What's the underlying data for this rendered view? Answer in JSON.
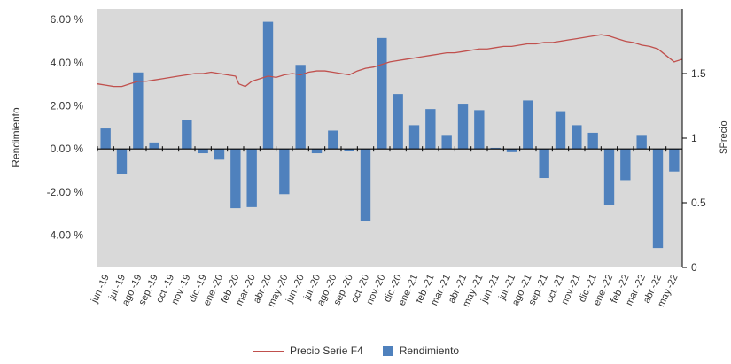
{
  "chart_data": {
    "type": "bar",
    "xlabel": "",
    "ylabel": "Rendimiento",
    "y2label": "$Precio",
    "categories": [
      "jun.-19",
      "jul.-19",
      "ago.-19",
      "sep.-19",
      "oct.-19",
      "nov.-19",
      "dic.-19",
      "ene.-20",
      "feb.-20",
      "mar.-20",
      "abr.-20",
      "may.-20",
      "jun.-20",
      "jul.-20",
      "ago.-20",
      "sep.-20",
      "oct.-20",
      "nov.-20",
      "dic.-20",
      "ene.-21",
      "feb.-21",
      "mar.-21",
      "abr.-21",
      "may.-21",
      "jun.-21",
      "jul.-21",
      "ago.-21",
      "sep.-21",
      "oct.-21",
      "nov.-21",
      "dic.-21",
      "ene.-22",
      "feb.-22",
      "mar.-22",
      "abr.-22",
      "may.-22"
    ],
    "x_tick_labels": [
      "jun.-19",
      "jul.-19",
      "ago.-19",
      "sep.-19",
      "oct.-19",
      "nov.-19",
      "dic.-19",
      "ene.-20",
      "feb.-20",
      "mar.-20",
      "abr.-20",
      "may.-20",
      "jun.-20",
      "jul.-20",
      "ago.-20",
      "sep.-20",
      "oct.-20",
      "nov.-20",
      "dic.-20",
      "ene.-21",
      "feb.-21",
      "mar.-21",
      "abr.-21",
      "may.-21",
      "jun.-21",
      "jul.-21",
      "ago.-21",
      "sep.-21",
      "oct.-21",
      "nov.-21",
      "dic.-21",
      "ene.-22",
      "feb.-22",
      "mar.-22",
      "abr.-22",
      "may.-22"
    ],
    "ylim": [
      -5.5,
      6.5
    ],
    "y_ticks": [
      -4,
      -2,
      0,
      2,
      4,
      6
    ],
    "y_tick_labels": [
      "-4.00 %",
      "-2.00 %",
      "0.00 %",
      "2.00 %",
      "4.00 %",
      "6.00 %"
    ],
    "y2lim": [
      0,
      2
    ],
    "y2_ticks": [
      0,
      0.5,
      1,
      1.5
    ],
    "y2_tick_labels": [
      "0",
      "0.5",
      "1",
      "1.5"
    ],
    "grid": false,
    "plot_background": "#d9d9d9",
    "legend_position": "bottom",
    "series": [
      {
        "name": "Rendimiento",
        "kind": "bar",
        "axis": "left",
        "color": "#4f81bd",
        "values": [
          0.95,
          -1.15,
          3.55,
          0.3,
          0.0,
          1.35,
          -0.2,
          -0.5,
          -2.75,
          -2.7,
          5.9,
          -2.1,
          3.9,
          -0.2,
          0.85,
          -0.1,
          -3.35,
          5.15,
          2.55,
          1.1,
          1.85,
          0.65,
          2.1,
          1.8,
          0.05,
          -0.15,
          2.25,
          -1.35,
          1.75,
          1.1,
          0.75,
          -2.6,
          -1.45,
          0.65,
          -4.6,
          -1.05
        ]
      },
      {
        "name": "Precio Serie F4",
        "kind": "line",
        "axis": "right",
        "color": "#c0504d",
        "x": [
          -0.5,
          0,
          0.5,
          1,
          1.5,
          2,
          2.5,
          3,
          3.5,
          4,
          4.5,
          5,
          5.5,
          6,
          6.5,
          7,
          7.5,
          8,
          8.2,
          8.6,
          9,
          9.5,
          10,
          10.5,
          11,
          11.5,
          12,
          12.5,
          13,
          13.5,
          14,
          14.5,
          15,
          15.5,
          16,
          16.5,
          17,
          17.5,
          18,
          18.5,
          19,
          19.5,
          20,
          20.5,
          21,
          21.5,
          22,
          22.5,
          23,
          23.5,
          24,
          24.5,
          25,
          25.5,
          26,
          26.5,
          27,
          27.5,
          28,
          28.5,
          29,
          29.5,
          30,
          30.5,
          31,
          31.5,
          32,
          32.5,
          33,
          33.5,
          34,
          34.5,
          35,
          35.5
        ],
        "values": [
          1.42,
          1.41,
          1.4,
          1.4,
          1.42,
          1.44,
          1.44,
          1.45,
          1.46,
          1.47,
          1.48,
          1.49,
          1.5,
          1.5,
          1.51,
          1.5,
          1.49,
          1.48,
          1.42,
          1.4,
          1.44,
          1.46,
          1.48,
          1.47,
          1.49,
          1.5,
          1.49,
          1.51,
          1.52,
          1.52,
          1.51,
          1.5,
          1.49,
          1.52,
          1.54,
          1.55,
          1.57,
          1.59,
          1.6,
          1.61,
          1.62,
          1.63,
          1.64,
          1.65,
          1.66,
          1.66,
          1.67,
          1.68,
          1.69,
          1.69,
          1.7,
          1.71,
          1.71,
          1.72,
          1.73,
          1.73,
          1.74,
          1.74,
          1.75,
          1.76,
          1.77,
          1.78,
          1.79,
          1.8,
          1.79,
          1.77,
          1.75,
          1.74,
          1.72,
          1.71,
          1.69,
          1.64,
          1.59,
          1.61
        ]
      }
    ],
    "legend": [
      "Precio Serie F4",
      "Rendimiento"
    ]
  }
}
